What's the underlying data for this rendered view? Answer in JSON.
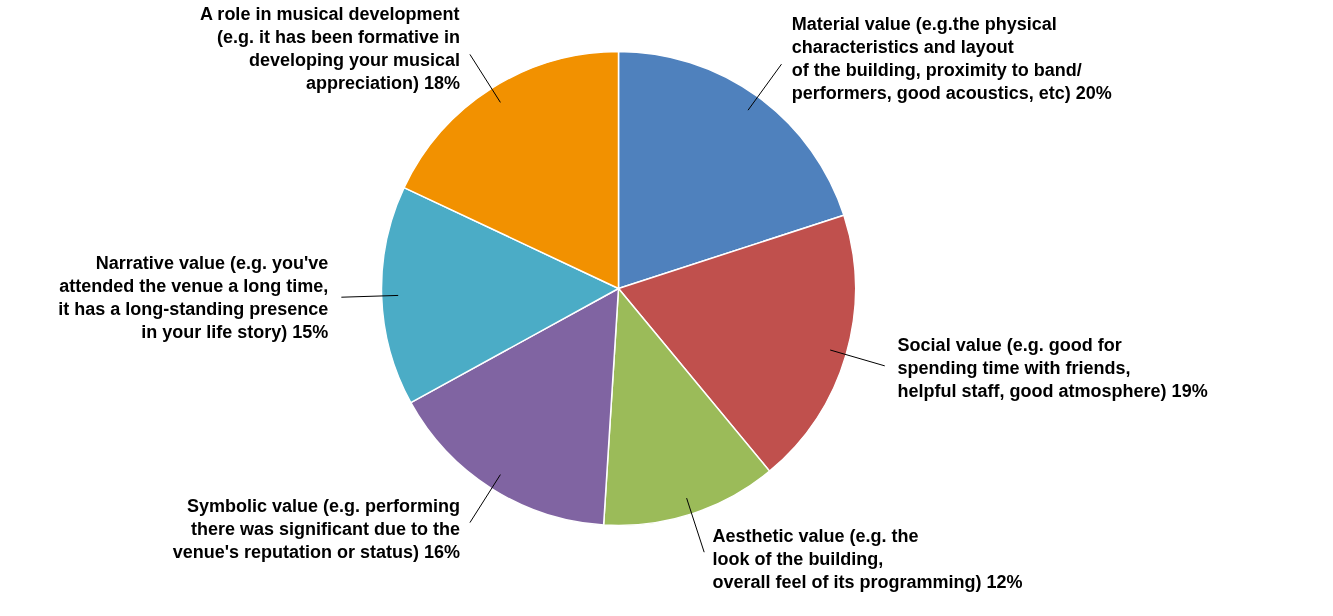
{
  "chart_data": {
    "type": "pie",
    "categories": [
      "Material value (e.g.the physical\ncharacteristics and layout\nof the building, proximity to band/\nperformers, good acoustics, etc)",
      "Social value (e.g. good for\nspending time with friends,\nhelpful staff, good atmosphere)",
      "Aesthetic value (e.g. the\nlook of the building,\noverall feel of its programming)",
      "Symbolic value (e.g. performing\nthere was significant due to the\nvenue's reputation or status)",
      "Narrative value (e.g. you've\nattended the venue a long time,\nit has a long-standing presence\nin your life story)",
      "A role in musical development\n(e.g. it has been formative in\ndeveloping your musical\nappreciation)"
    ],
    "values": [
      20,
      19,
      12,
      16,
      15,
      18
    ],
    "value_labels": [
      "20%",
      "19%",
      "12%",
      "16%",
      "15%",
      "18%"
    ],
    "colors": [
      "#4f81bd",
      "#c0504d",
      "#9bbb59",
      "#8064a2",
      "#4bacc6",
      "#f29100"
    ]
  }
}
